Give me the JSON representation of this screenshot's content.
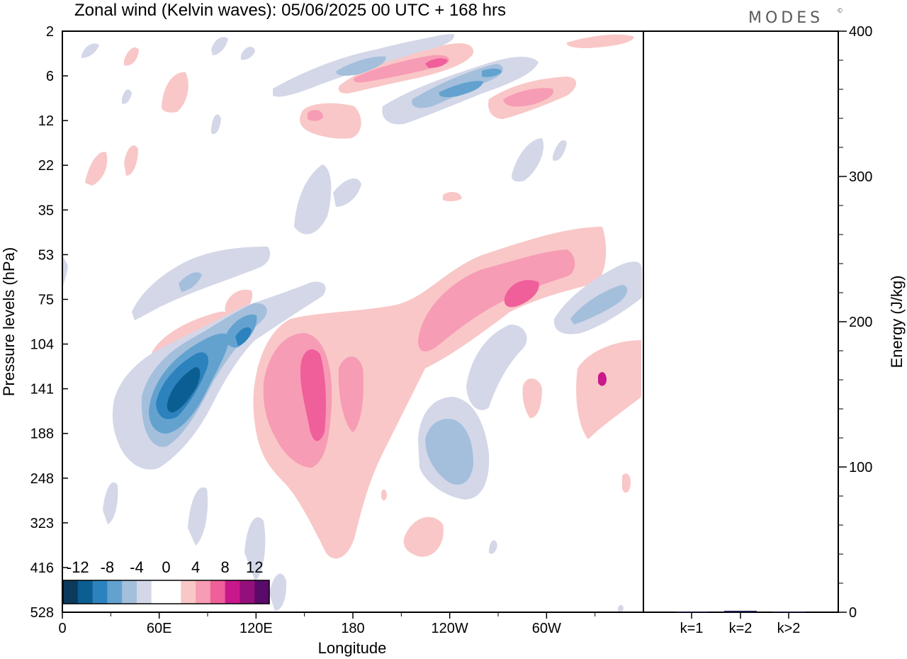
{
  "header": {
    "title": "Zonal wind (Kelvin waves):  05/06/2025  00 UTC  + 168 hrs",
    "logo": "MODES",
    "logo_mark": "©"
  },
  "chart_data": [
    {
      "type": "contour",
      "xlabel": "Longitude",
      "ylabel": "Pressure levels (hPa)",
      "x_ticks": [
        "0",
        "60E",
        "120E",
        "180",
        "120W",
        "60W"
      ],
      "y_ticks": [
        "2",
        "6",
        "12",
        "22",
        "35",
        "53",
        "75",
        "104",
        "141",
        "188",
        "248",
        "323",
        "416",
        "528"
      ],
      "colorbar": {
        "labels": [
          "-12",
          "-8",
          "-4",
          "0",
          "4",
          "8",
          "12"
        ],
        "colors": [
          "#0d3a5c",
          "#0b5e91",
          "#2b82bd",
          "#63a2cf",
          "#a3bfdc",
          "#d3d7e8",
          "#ffffff",
          "#ffffff",
          "#f9c7c7",
          "#f79cb5",
          "#ef5f9a",
          "#c9188b",
          "#950f7a",
          "#5b0a6a"
        ]
      },
      "features": [
        {
          "sign": "negative",
          "level": -12,
          "lon": 75,
          "pressure": 141
        },
        {
          "sign": "negative",
          "level": -8,
          "lon": 105,
          "pressure": 110
        },
        {
          "sign": "negative",
          "level": -4,
          "lon": 232,
          "pressure": 188
        },
        {
          "sign": "negative",
          "level": -4,
          "lon": 342,
          "pressure": 82
        },
        {
          "sign": "negative",
          "level": -4,
          "lon": 270,
          "pressure": 6
        },
        {
          "sign": "positive",
          "level": 8,
          "lon": 152,
          "pressure": 141
        },
        {
          "sign": "positive",
          "level": 8,
          "lon": 272,
          "pressure": 78
        },
        {
          "sign": "positive",
          "level": 8,
          "lon": 225,
          "pressure": 5
        },
        {
          "sign": "positive",
          "level": 4,
          "lon": 330,
          "pressure": 152
        }
      ]
    },
    {
      "type": "bar",
      "ylabel": "Energy (J/kg)",
      "ylim": [
        0,
        400
      ],
      "y_ticks": [
        "0",
        "100",
        "200",
        "300",
        "400"
      ],
      "categories": [
        "k=1",
        "k=2",
        "k>2"
      ],
      "values": [
        0.5,
        1,
        0.5
      ],
      "bar_color": "#1a1a4a"
    }
  ]
}
